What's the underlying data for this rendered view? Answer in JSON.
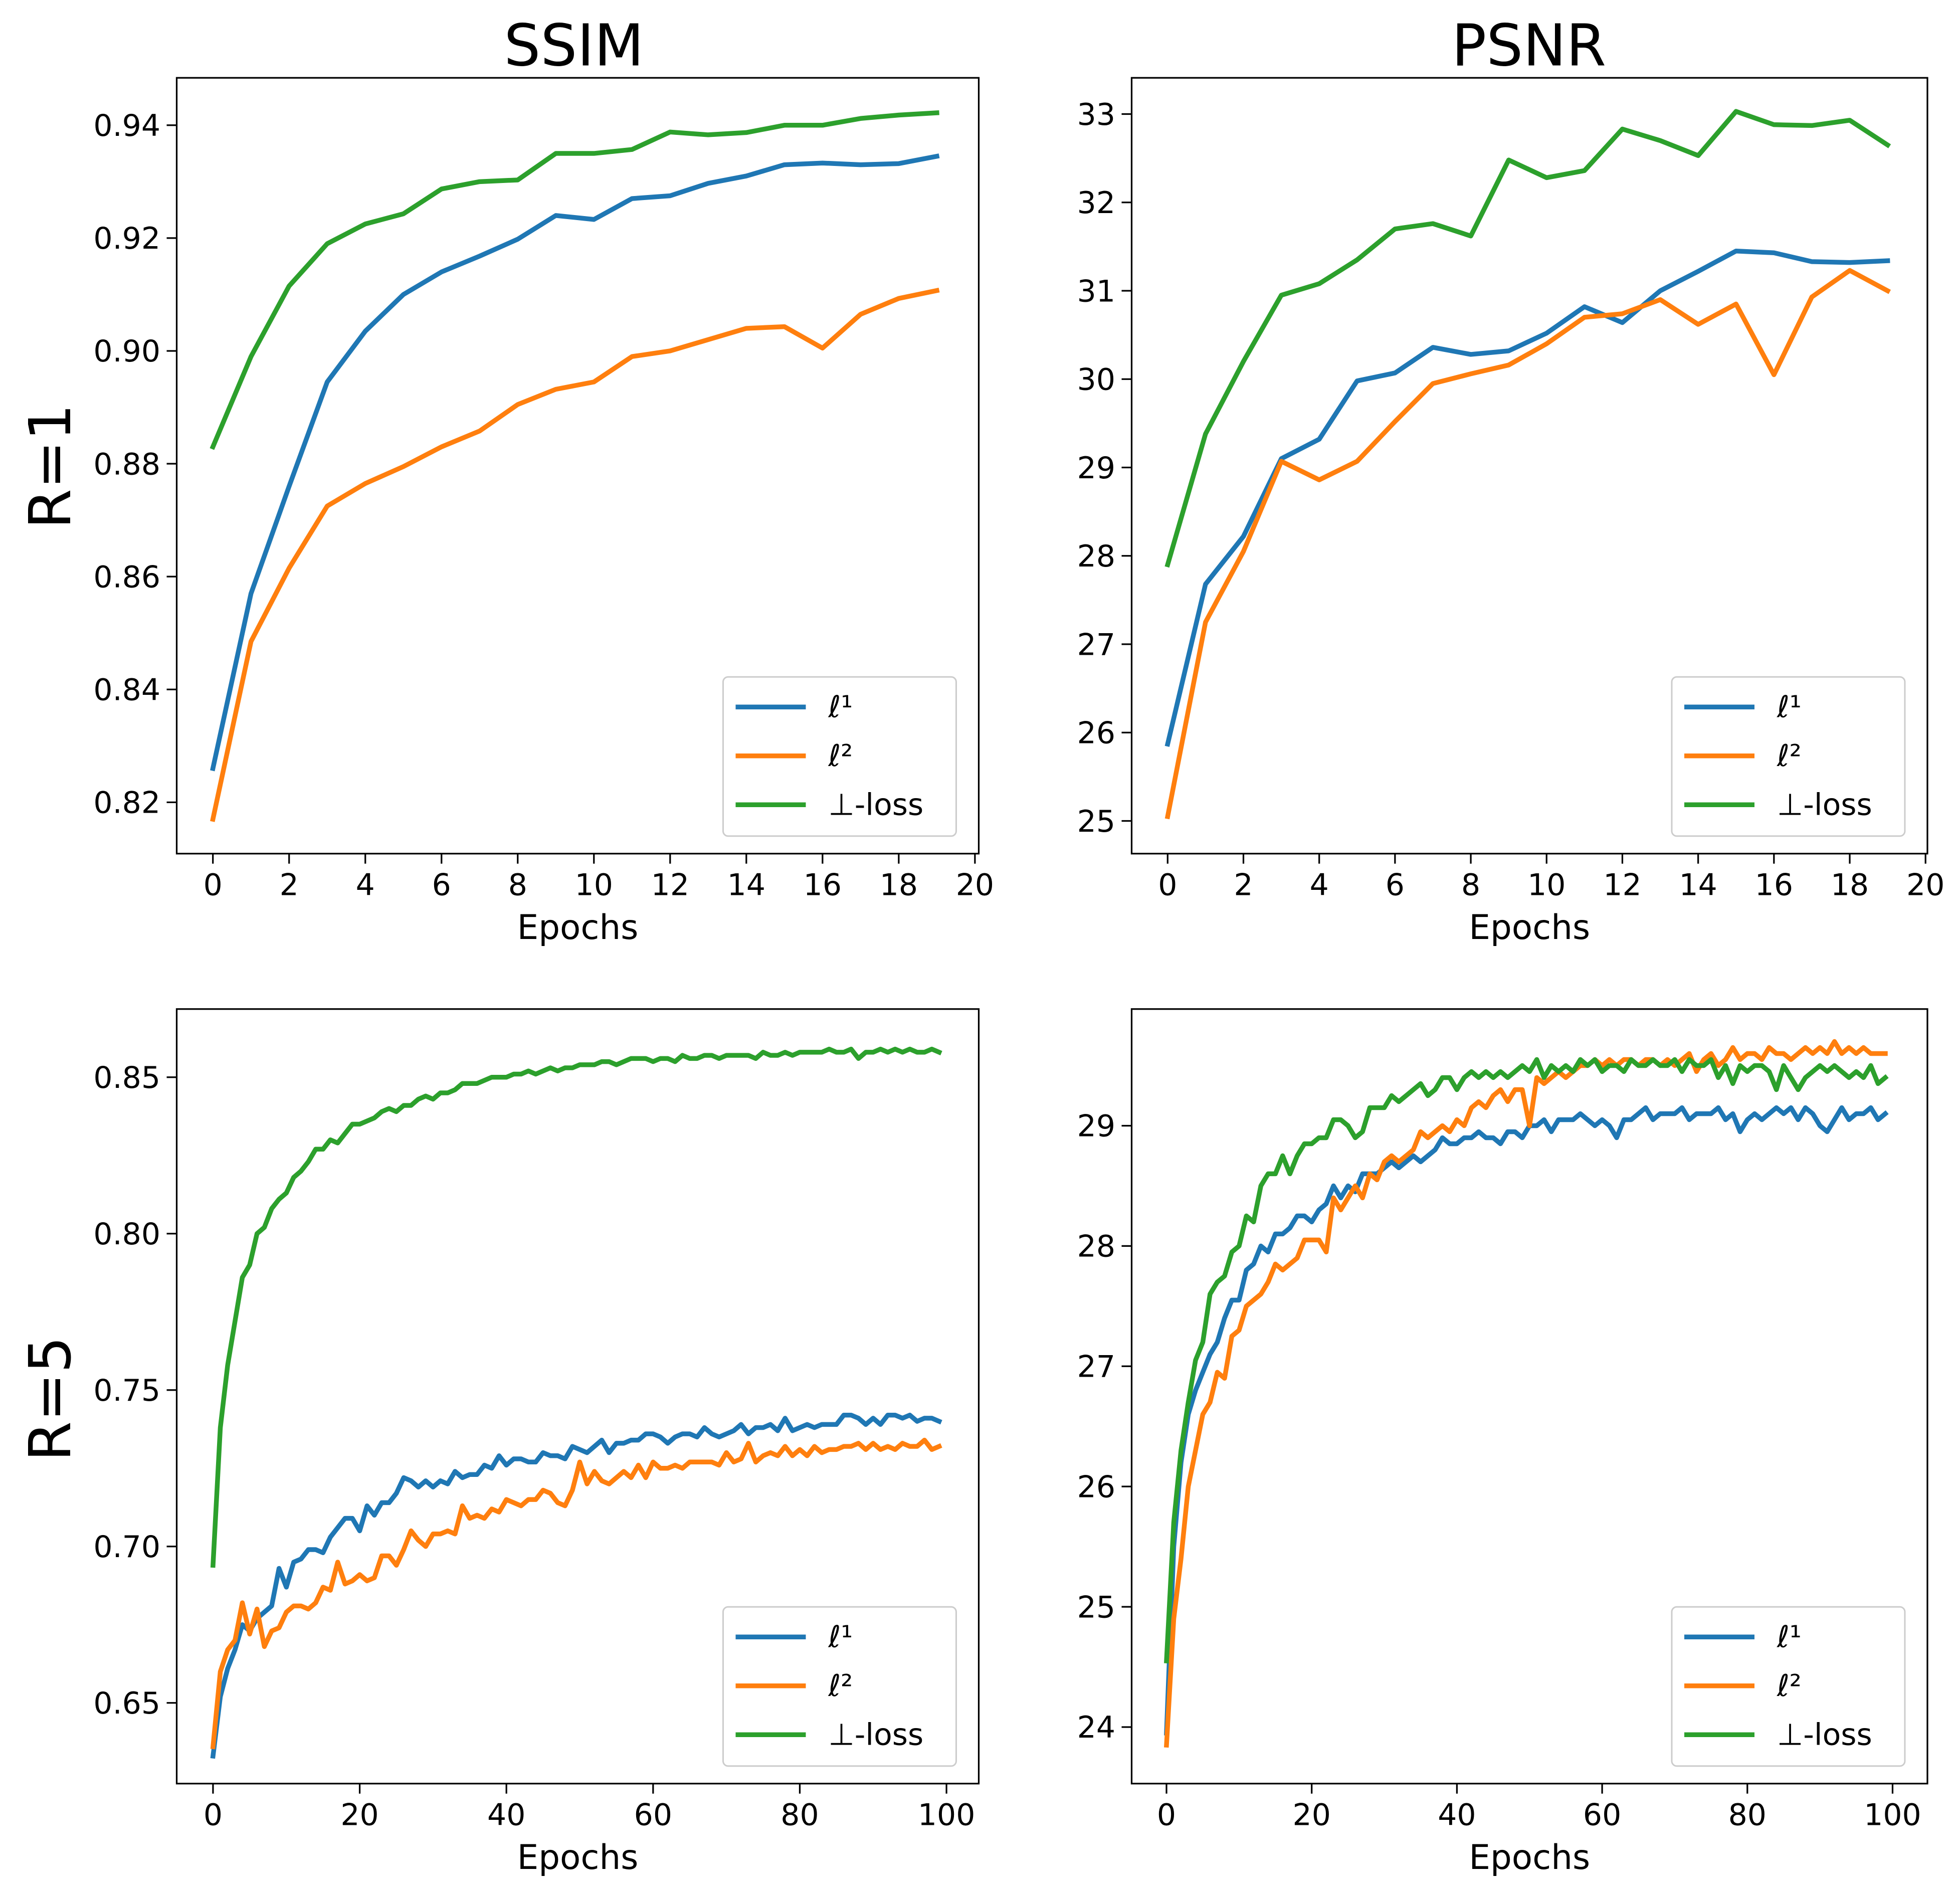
{
  "colors": {
    "l1": "#1f77b4",
    "l2": "#ff7f0e",
    "perp": "#2ca02c"
  },
  "column_titles": [
    "SSIM",
    "PSNR"
  ],
  "row_labels": [
    "R=1",
    "R=5"
  ],
  "chart_data": [
    {
      "type": "line",
      "title": "SSIM",
      "row": "R=1",
      "xlabel": "Epochs",
      "ylabel": "",
      "xlim": [
        -0.95,
        20.1
      ],
      "ylim": [
        0.8109,
        0.9484
      ],
      "xticks": [
        0,
        2,
        4,
        6,
        8,
        10,
        12,
        14,
        16,
        18,
        20
      ],
      "yticks": [
        0.82,
        0.84,
        0.86,
        0.88,
        0.9,
        0.92,
        0.94
      ],
      "ytick_decimals": 2,
      "legend": "lower-right",
      "grid": false,
      "series": [
        {
          "name": "ℓ¹",
          "color": "#1f77b4",
          "values": [
            0.826,
            0.857,
            0.876,
            0.8945,
            0.9035,
            0.91,
            0.914,
            0.9168,
            0.9198,
            0.924,
            0.9233,
            0.927,
            0.9275,
            0.9297,
            0.931,
            0.933,
            0.9333,
            0.933,
            0.9332,
            0.9345
          ]
        },
        {
          "name": "ℓ²",
          "color": "#ff7f0e",
          "values": [
            0.817,
            0.8485,
            0.8615,
            0.8725,
            0.8765,
            0.8795,
            0.883,
            0.8858,
            0.8905,
            0.8932,
            0.8945,
            0.899,
            0.9,
            0.902,
            0.904,
            0.9043,
            0.9005,
            0.9065,
            0.9093,
            0.9107
          ]
        },
        {
          "name": "⊥-loss",
          "color": "#2ca02c",
          "values": [
            0.883,
            0.899,
            0.9115,
            0.919,
            0.9225,
            0.9243,
            0.9287,
            0.93,
            0.9303,
            0.935,
            0.935,
            0.9357,
            0.9388,
            0.9383,
            0.9387,
            0.94,
            0.94,
            0.9412,
            0.9418,
            0.9422
          ]
        }
      ]
    },
    {
      "type": "line",
      "title": "PSNR",
      "row": "R=1",
      "xlabel": "Epochs",
      "ylabel": "",
      "xlim": [
        -0.95,
        20.05
      ],
      "ylim": [
        24.63,
        33.41
      ],
      "xticks": [
        0,
        2,
        4,
        6,
        8,
        10,
        12,
        14,
        16,
        18,
        20
      ],
      "yticks": [
        25,
        26,
        27,
        28,
        29,
        30,
        31,
        32,
        33
      ],
      "ytick_decimals": 0,
      "legend": "lower-right",
      "grid": false,
      "series": [
        {
          "name": "ℓ¹",
          "color": "#1f77b4",
          "values": [
            25.87,
            27.68,
            28.22,
            29.1,
            29.32,
            29.98,
            30.07,
            30.36,
            30.28,
            30.32,
            30.52,
            30.82,
            30.64,
            31.0,
            31.22,
            31.45,
            31.43,
            31.33,
            31.32,
            31.34
          ]
        },
        {
          "name": "ℓ²",
          "color": "#ff7f0e",
          "values": [
            25.05,
            27.25,
            28.05,
            29.07,
            28.86,
            29.07,
            29.52,
            29.95,
            30.06,
            30.16,
            30.4,
            30.7,
            30.74,
            30.9,
            30.62,
            30.85,
            30.05,
            30.93,
            31.23,
            31.0
          ]
        },
        {
          "name": "⊥-loss",
          "color": "#2ca02c",
          "values": [
            27.9,
            29.38,
            30.2,
            30.95,
            31.08,
            31.35,
            31.7,
            31.76,
            31.62,
            32.48,
            32.28,
            32.36,
            32.83,
            32.7,
            32.53,
            33.03,
            32.88,
            32.87,
            32.93,
            32.65
          ]
        }
      ]
    },
    {
      "type": "line",
      "title": "",
      "row": "R=5",
      "xlabel": "Epochs",
      "ylabel": "",
      "xlim": [
        -4.95,
        104.4
      ],
      "ylim": [
        0.6242,
        0.8718
      ],
      "xticks": [
        0,
        20,
        40,
        60,
        80,
        100
      ],
      "yticks": [
        0.65,
        0.7,
        0.75,
        0.8,
        0.85
      ],
      "ytick_decimals": 2,
      "legend": "lower-right",
      "grid": false,
      "series": [
        {
          "name": "ℓ¹",
          "color": "#1f77b4",
          "values": [
            0.633,
            0.652,
            0.661,
            0.667,
            0.675,
            0.673,
            0.677,
            0.679,
            0.681,
            0.693,
            0.687,
            0.695,
            0.696,
            0.699,
            0.699,
            0.698,
            0.703,
            0.706,
            0.709,
            0.709,
            0.705,
            0.713,
            0.71,
            0.714,
            0.714,
            0.717,
            0.722,
            0.721,
            0.719,
            0.721,
            0.719,
            0.721,
            0.72,
            0.724,
            0.722,
            0.723,
            0.723,
            0.726,
            0.725,
            0.729,
            0.726,
            0.728,
            0.728,
            0.727,
            0.727,
            0.73,
            0.729,
            0.729,
            0.728,
            0.732,
            0.731,
            0.73,
            0.732,
            0.734,
            0.73,
            0.733,
            0.733,
            0.734,
            0.734,
            0.736,
            0.736,
            0.735,
            0.733,
            0.735,
            0.736,
            0.736,
            0.735,
            0.738,
            0.736,
            0.735,
            0.736,
            0.737,
            0.739,
            0.736,
            0.738,
            0.738,
            0.739,
            0.737,
            0.741,
            0.737,
            0.738,
            0.739,
            0.738,
            0.739,
            0.739,
            0.739,
            0.742,
            0.742,
            0.741,
            0.739,
            0.741,
            0.739,
            0.742,
            0.742,
            0.741,
            0.742,
            0.74,
            0.741,
            0.741,
            0.74
          ]
        },
        {
          "name": "ℓ²",
          "color": "#ff7f0e",
          "values": [
            0.636,
            0.66,
            0.667,
            0.67,
            0.682,
            0.672,
            0.68,
            0.668,
            0.673,
            0.674,
            0.679,
            0.681,
            0.681,
            0.68,
            0.682,
            0.687,
            0.686,
            0.695,
            0.688,
            0.689,
            0.691,
            0.689,
            0.69,
            0.697,
            0.697,
            0.694,
            0.699,
            0.705,
            0.702,
            0.7,
            0.704,
            0.704,
            0.705,
            0.704,
            0.713,
            0.709,
            0.71,
            0.709,
            0.712,
            0.711,
            0.715,
            0.714,
            0.713,
            0.715,
            0.715,
            0.718,
            0.717,
            0.714,
            0.713,
            0.718,
            0.727,
            0.72,
            0.724,
            0.721,
            0.72,
            0.722,
            0.724,
            0.722,
            0.726,
            0.722,
            0.727,
            0.725,
            0.725,
            0.726,
            0.725,
            0.727,
            0.727,
            0.727,
            0.727,
            0.726,
            0.73,
            0.727,
            0.728,
            0.733,
            0.727,
            0.729,
            0.73,
            0.729,
            0.732,
            0.729,
            0.731,
            0.729,
            0.732,
            0.73,
            0.731,
            0.731,
            0.732,
            0.732,
            0.733,
            0.731,
            0.733,
            0.731,
            0.732,
            0.731,
            0.733,
            0.732,
            0.732,
            0.734,
            0.731,
            0.732
          ]
        },
        {
          "name": "⊥-loss",
          "color": "#2ca02c",
          "values": [
            0.694,
            0.738,
            0.758,
            0.772,
            0.786,
            0.79,
            0.8,
            0.802,
            0.808,
            0.811,
            0.813,
            0.818,
            0.82,
            0.823,
            0.827,
            0.827,
            0.83,
            0.829,
            0.832,
            0.835,
            0.835,
            0.836,
            0.837,
            0.839,
            0.84,
            0.839,
            0.841,
            0.841,
            0.843,
            0.844,
            0.843,
            0.845,
            0.845,
            0.846,
            0.848,
            0.848,
            0.848,
            0.849,
            0.85,
            0.85,
            0.85,
            0.851,
            0.851,
            0.852,
            0.851,
            0.852,
            0.853,
            0.852,
            0.853,
            0.853,
            0.854,
            0.854,
            0.854,
            0.855,
            0.855,
            0.854,
            0.855,
            0.856,
            0.856,
            0.856,
            0.855,
            0.856,
            0.856,
            0.855,
            0.857,
            0.856,
            0.856,
            0.857,
            0.857,
            0.856,
            0.857,
            0.857,
            0.857,
            0.857,
            0.856,
            0.858,
            0.857,
            0.857,
            0.858,
            0.857,
            0.858,
            0.858,
            0.858,
            0.858,
            0.859,
            0.858,
            0.858,
            0.859,
            0.856,
            0.858,
            0.858,
            0.859,
            0.858,
            0.859,
            0.858,
            0.859,
            0.858,
            0.858,
            0.859,
            0.858
          ]
        }
      ]
    },
    {
      "type": "line",
      "title": "",
      "row": "R=5",
      "xlabel": "Epochs",
      "ylabel": "",
      "xlim": [
        -4.8,
        104.8
      ],
      "ylim": [
        23.53,
        29.97
      ],
      "xticks": [
        0,
        20,
        40,
        60,
        80,
        100
      ],
      "yticks": [
        24,
        25,
        26,
        27,
        28,
        29
      ],
      "ytick_decimals": 0,
      "legend": "lower-right",
      "grid": false,
      "series": [
        {
          "name": "ℓ¹",
          "color": "#1f77b4",
          "values": [
            23.95,
            25.5,
            26.2,
            26.6,
            26.8,
            26.95,
            27.1,
            27.2,
            27.4,
            27.55,
            27.55,
            27.8,
            27.85,
            28.0,
            27.95,
            28.1,
            28.1,
            28.15,
            28.25,
            28.25,
            28.2,
            28.3,
            28.35,
            28.5,
            28.4,
            28.5,
            28.45,
            28.6,
            28.6,
            28.6,
            28.65,
            28.7,
            28.65,
            28.7,
            28.75,
            28.7,
            28.75,
            28.8,
            28.9,
            28.85,
            28.85,
            28.9,
            28.9,
            28.95,
            28.9,
            28.9,
            28.85,
            28.95,
            28.95,
            28.9,
            29.0,
            29.0,
            29.05,
            28.95,
            29.05,
            29.05,
            29.05,
            29.1,
            29.05,
            29.0,
            29.05,
            29.0,
            28.9,
            29.05,
            29.05,
            29.1,
            29.15,
            29.05,
            29.1,
            29.1,
            29.1,
            29.15,
            29.05,
            29.1,
            29.1,
            29.1,
            29.15,
            29.05,
            29.1,
            28.95,
            29.05,
            29.1,
            29.05,
            29.1,
            29.15,
            29.1,
            29.15,
            29.05,
            29.15,
            29.1,
            29.0,
            28.95,
            29.05,
            29.15,
            29.05,
            29.1,
            29.1,
            29.15,
            29.05,
            29.1
          ]
        },
        {
          "name": "ℓ²",
          "color": "#ff7f0e",
          "values": [
            23.85,
            24.9,
            25.4,
            26.0,
            26.3,
            26.6,
            26.7,
            26.95,
            26.9,
            27.25,
            27.3,
            27.5,
            27.55,
            27.6,
            27.7,
            27.85,
            27.8,
            27.85,
            27.9,
            28.05,
            28.05,
            28.05,
            27.95,
            28.4,
            28.3,
            28.4,
            28.5,
            28.4,
            28.6,
            28.55,
            28.7,
            28.75,
            28.7,
            28.75,
            28.8,
            28.95,
            28.9,
            28.95,
            29.0,
            28.95,
            29.05,
            29.0,
            29.15,
            29.2,
            29.15,
            29.25,
            29.3,
            29.2,
            29.3,
            29.3,
            29.0,
            29.4,
            29.35,
            29.4,
            29.45,
            29.4,
            29.45,
            29.5,
            29.5,
            29.55,
            29.5,
            29.55,
            29.5,
            29.55,
            29.55,
            29.5,
            29.55,
            29.55,
            29.5,
            29.55,
            29.5,
            29.55,
            29.6,
            29.45,
            29.55,
            29.6,
            29.5,
            29.55,
            29.65,
            29.55,
            29.6,
            29.6,
            29.55,
            29.65,
            29.6,
            29.6,
            29.55,
            29.6,
            29.65,
            29.6,
            29.65,
            29.6,
            29.7,
            29.6,
            29.65,
            29.6,
            29.65,
            29.6,
            29.6,
            29.6
          ]
        },
        {
          "name": "⊥-loss",
          "color": "#2ca02c",
          "values": [
            24.55,
            25.7,
            26.3,
            26.7,
            27.05,
            27.2,
            27.6,
            27.7,
            27.75,
            27.95,
            28.0,
            28.25,
            28.2,
            28.5,
            28.6,
            28.6,
            28.75,
            28.6,
            28.75,
            28.85,
            28.85,
            28.9,
            28.9,
            29.05,
            29.05,
            29.0,
            28.9,
            28.95,
            29.15,
            29.15,
            29.15,
            29.25,
            29.2,
            29.25,
            29.3,
            29.35,
            29.25,
            29.3,
            29.4,
            29.4,
            29.3,
            29.4,
            29.45,
            29.4,
            29.45,
            29.4,
            29.45,
            29.4,
            29.45,
            29.5,
            29.45,
            29.55,
            29.4,
            29.5,
            29.45,
            29.5,
            29.45,
            29.55,
            29.5,
            29.55,
            29.45,
            29.5,
            29.5,
            29.45,
            29.55,
            29.5,
            29.5,
            29.55,
            29.5,
            29.5,
            29.55,
            29.45,
            29.55,
            29.5,
            29.5,
            29.55,
            29.4,
            29.5,
            29.35,
            29.5,
            29.45,
            29.5,
            29.5,
            29.45,
            29.3,
            29.5,
            29.4,
            29.3,
            29.4,
            29.45,
            29.5,
            29.45,
            29.5,
            29.45,
            29.4,
            29.45,
            29.4,
            29.5,
            29.35,
            29.4
          ]
        }
      ]
    }
  ]
}
